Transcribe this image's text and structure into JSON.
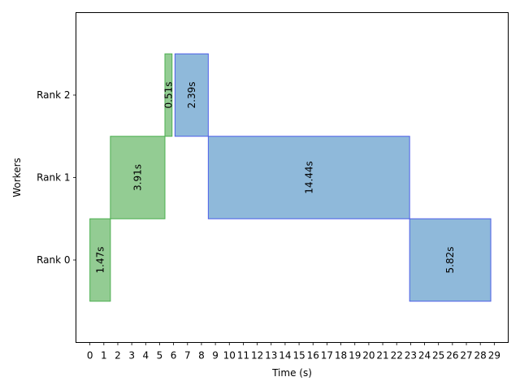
{
  "chart_data": {
    "type": "bar",
    "orientation": "horizontal-gantt",
    "title": "",
    "xlabel": "Time (s)",
    "ylabel": "Workers",
    "xlim": [
      -1,
      30
    ],
    "ylim": [
      -1,
      3
    ],
    "x_ticks": [
      0,
      1,
      2,
      3,
      4,
      5,
      6,
      7,
      8,
      9,
      10,
      11,
      12,
      13,
      14,
      15,
      16,
      17,
      18,
      19,
      20,
      21,
      22,
      23,
      24,
      25,
      26,
      27,
      28,
      29
    ],
    "categories": [
      "Rank 0",
      "Rank 1",
      "Rank 2"
    ],
    "grid": false,
    "colors": {
      "green_fill": "#93cc93",
      "green_edge": "#4caf50",
      "blue_fill": "#8fb9da",
      "blue_edge": "#4d5fe8"
    },
    "segments": [
      {
        "worker": "Rank 0",
        "start": 0.0,
        "duration": 1.47,
        "label": "1.47s",
        "color": "green"
      },
      {
        "worker": "Rank 1",
        "start": 1.47,
        "duration": 3.91,
        "label": "3.91s",
        "color": "green"
      },
      {
        "worker": "Rank 2",
        "start": 5.38,
        "duration": 0.51,
        "label": "0.51s",
        "color": "green"
      },
      {
        "worker": "Rank 2",
        "start": 6.1,
        "duration": 2.39,
        "label": "2.39s",
        "color": "blue"
      },
      {
        "worker": "Rank 1",
        "start": 8.49,
        "duration": 14.44,
        "label": "14.44s",
        "color": "blue"
      },
      {
        "worker": "Rank 0",
        "start": 22.93,
        "duration": 5.82,
        "label": "5.82s",
        "color": "blue"
      }
    ]
  }
}
